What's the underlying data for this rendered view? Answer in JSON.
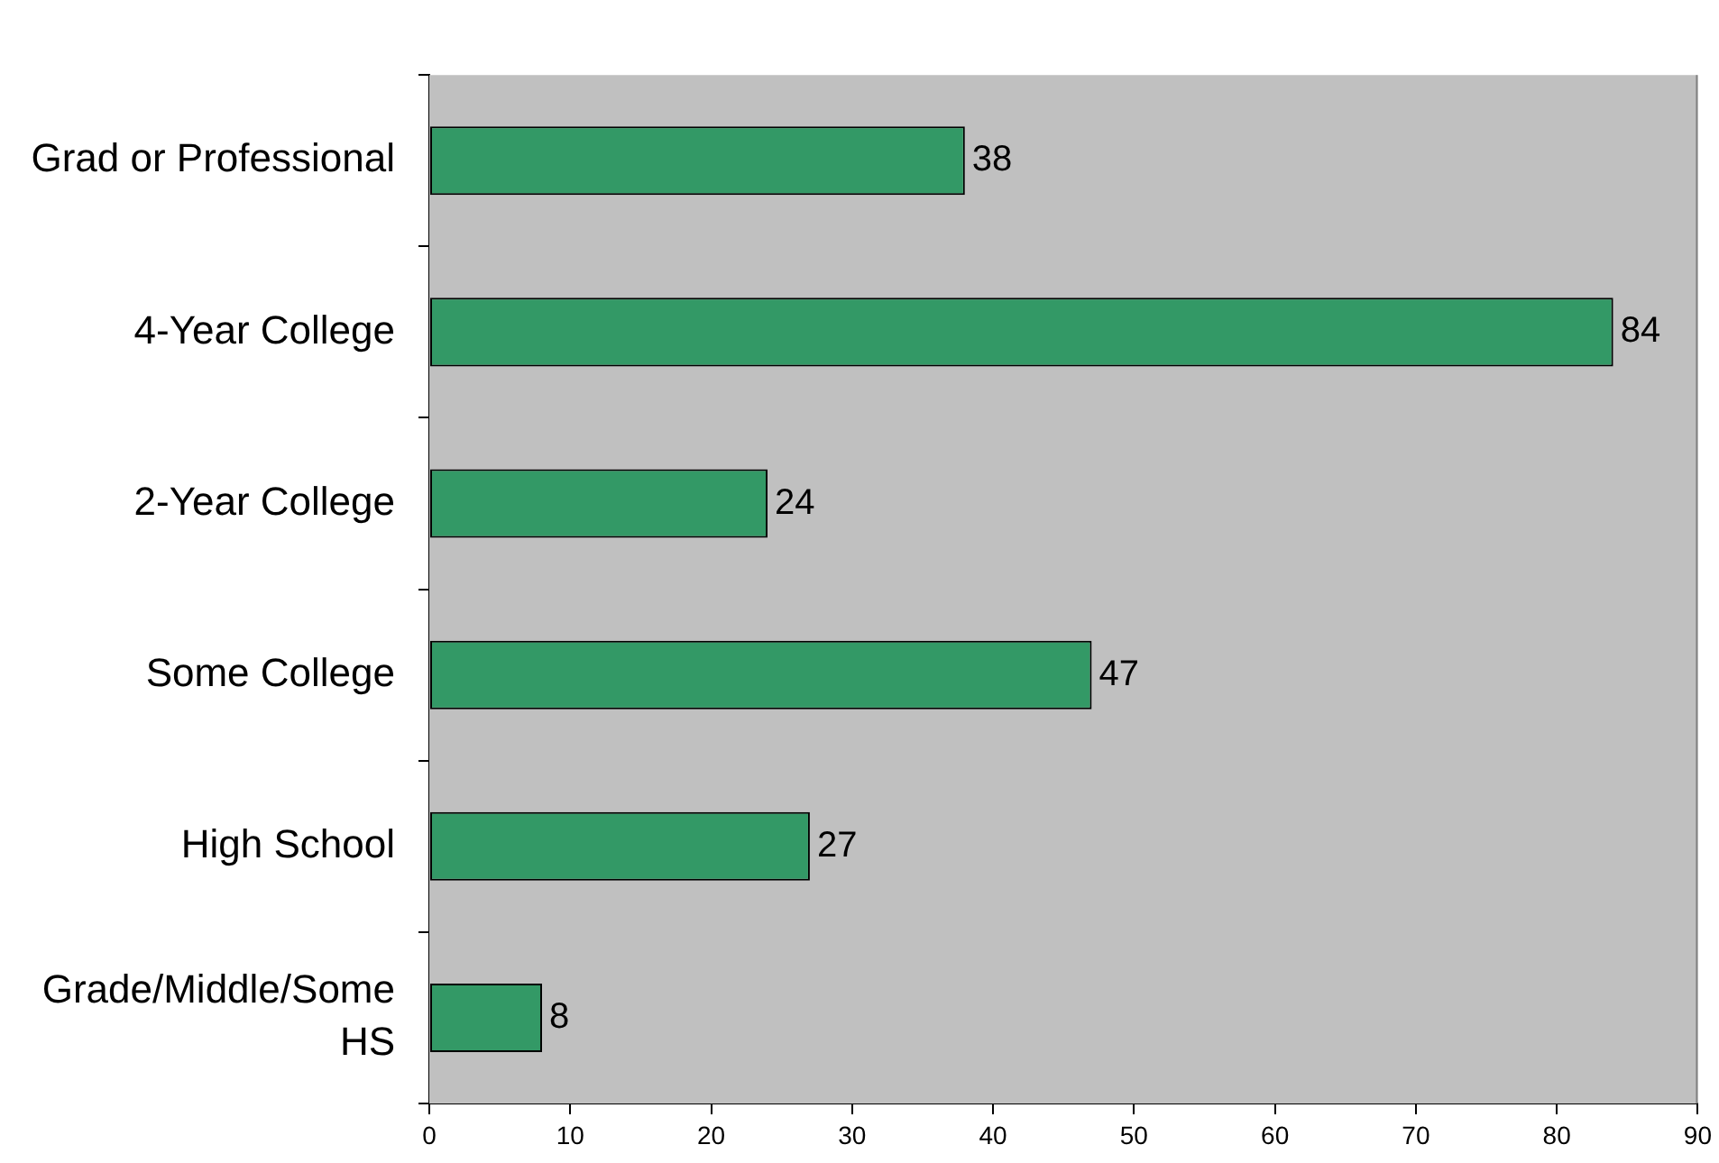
{
  "chart_data": {
    "type": "bar",
    "orientation": "horizontal",
    "categories": [
      "Grad or Professional",
      "4-Year College",
      "2-Year College",
      "Some College",
      "High School",
      "Grade/Middle/Some HS"
    ],
    "values": [
      38,
      84,
      24,
      47,
      27,
      8
    ],
    "color": "#339966",
    "xlim": [
      0,
      90
    ],
    "xticks": [
      0,
      10,
      20,
      30,
      40,
      50,
      60,
      70,
      80,
      90
    ],
    "data_labels": true
  }
}
